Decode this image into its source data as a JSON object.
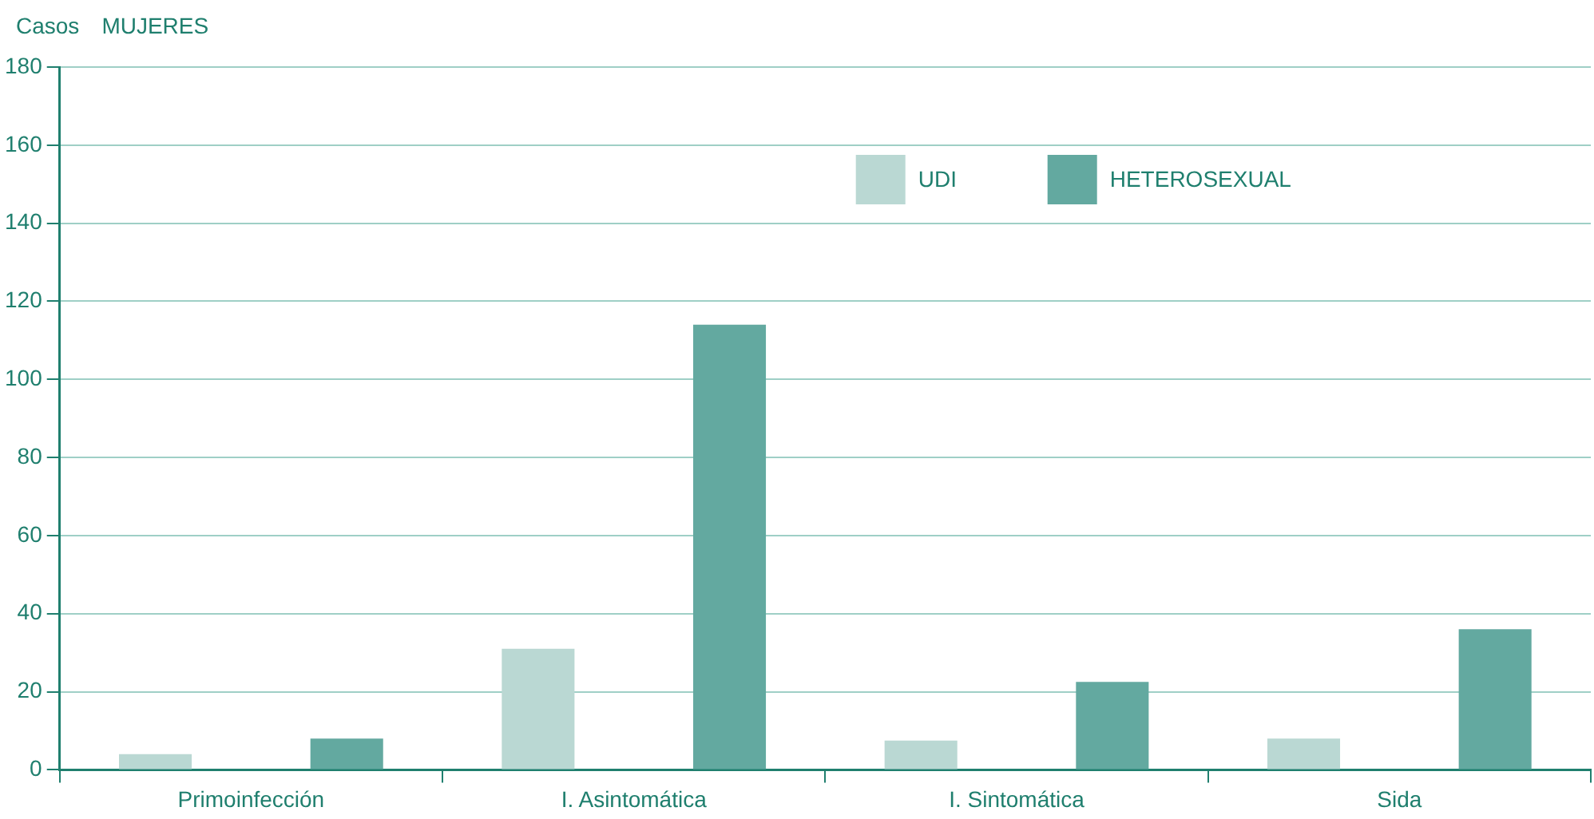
{
  "chart_data": {
    "type": "bar",
    "title": "MUJERES",
    "ylabel": "Casos",
    "categories": [
      "Primoinfección",
      "I. Asintomática",
      "I. Sintomática",
      "Sida"
    ],
    "series": [
      {
        "name": "UDI",
        "color": "#bad8d3",
        "values": [
          4,
          31,
          7.5,
          8
        ]
      },
      {
        "name": "HETEROSEXUAL",
        "color": "#63a9a0",
        "values": [
          8,
          114,
          22.5,
          36
        ]
      }
    ],
    "ylim": [
      0,
      180
    ],
    "yticks": [
      0,
      20,
      40,
      60,
      80,
      100,
      120,
      140,
      160,
      180
    ],
    "grid": "y",
    "legend": "top right"
  }
}
